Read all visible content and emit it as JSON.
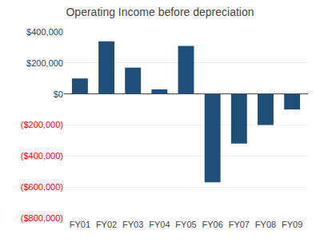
{
  "chart_data": {
    "type": "bar",
    "title": "Operating Income before depreciation",
    "categories": [
      "FY01",
      "FY02",
      "FY03",
      "FY04",
      "FY05",
      "FY06",
      "FY07",
      "FY08",
      "FY09"
    ],
    "values": [
      100000,
      340000,
      170000,
      30000,
      310000,
      -570000,
      -320000,
      -200000,
      -100000
    ],
    "color": "#1F4E79",
    "ylim": [
      -800000,
      400000
    ],
    "yticks": [
      {
        "value": -800000,
        "label": "($800,000)",
        "color": "#FF0000"
      },
      {
        "value": -600000,
        "label": "($600,000)",
        "color": "#FF0000"
      },
      {
        "value": -400000,
        "label": "($400,000)",
        "color": "#FF0000"
      },
      {
        "value": -200000,
        "label": "($200,000)",
        "color": "#FF0000"
      },
      {
        "value": 0,
        "label": "$0",
        "color": "#404040"
      },
      {
        "value": 200000,
        "label": "$200,000",
        "color": "#404040"
      },
      {
        "value": 400000,
        "label": "$400,000",
        "color": "#404040"
      }
    ],
    "grid": true
  }
}
